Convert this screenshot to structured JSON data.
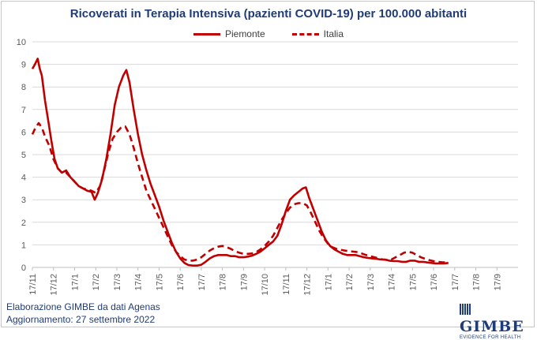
{
  "title": "Ricoverati in Terapia Intensiva (pazienti COVID-19) per 100.000 abitanti",
  "footer": {
    "line1": "Elaborazione GIMBE da dati Agenas",
    "line2": "Aggiornamento: 27 settembre 2022"
  },
  "logo": {
    "name": "GIMBE",
    "tagline": "EVIDENCE FOR HEALTH"
  },
  "colors": {
    "series": "#c00000",
    "grid": "#d9d9d9",
    "title": "#1f3c78"
  },
  "chart_data": {
    "type": "line",
    "title": "Ricoverati in Terapia Intensiva (pazienti COVID-19) per 100.000 abitanti",
    "xlabel": "",
    "ylabel": "",
    "ylim": [
      0,
      10
    ],
    "yticks": [
      0,
      1,
      2,
      3,
      4,
      5,
      6,
      7,
      8,
      9,
      10
    ],
    "grid": "horizontal",
    "legend_position": "top-center",
    "xticks": [
      "17/11",
      "17/12",
      "17/1",
      "17/2",
      "17/3",
      "17/4",
      "17/5",
      "17/6",
      "17/7",
      "17/8",
      "17/9",
      "17/10",
      "17/11",
      "17/12",
      "17/1",
      "17/2",
      "17/3",
      "17/4",
      "17/5",
      "17/6",
      "17/7",
      "17/8",
      "17/9"
    ],
    "series": [
      {
        "name": "Piemonte",
        "style": "solid",
        "points": [
          [
            0,
            8.8
          ],
          [
            0.12,
            9.0
          ],
          [
            0.25,
            9.25
          ],
          [
            0.35,
            8.8
          ],
          [
            0.45,
            8.5
          ],
          [
            0.6,
            7.4
          ],
          [
            0.75,
            6.5
          ],
          [
            0.9,
            5.6
          ],
          [
            1.05,
            4.8
          ],
          [
            1.2,
            4.4
          ],
          [
            1.4,
            4.2
          ],
          [
            1.6,
            4.3
          ],
          [
            1.8,
            4.0
          ],
          [
            2.0,
            3.8
          ],
          [
            2.2,
            3.6
          ],
          [
            2.4,
            3.5
          ],
          [
            2.6,
            3.4
          ],
          [
            2.8,
            3.35
          ],
          [
            2.95,
            3.0
          ],
          [
            3.1,
            3.3
          ],
          [
            3.3,
            3.9
          ],
          [
            3.5,
            4.8
          ],
          [
            3.7,
            5.9
          ],
          [
            3.9,
            7.2
          ],
          [
            4.1,
            8.0
          ],
          [
            4.3,
            8.5
          ],
          [
            4.45,
            8.75
          ],
          [
            4.6,
            8.2
          ],
          [
            4.8,
            7.0
          ],
          [
            5.0,
            5.9
          ],
          [
            5.2,
            5.0
          ],
          [
            5.4,
            4.3
          ],
          [
            5.6,
            3.7
          ],
          [
            5.8,
            3.2
          ],
          [
            6.0,
            2.7
          ],
          [
            6.2,
            2.1
          ],
          [
            6.4,
            1.6
          ],
          [
            6.6,
            1.1
          ],
          [
            6.8,
            0.7
          ],
          [
            7.0,
            0.4
          ],
          [
            7.2,
            0.2
          ],
          [
            7.4,
            0.1
          ],
          [
            7.6,
            0.08
          ],
          [
            7.8,
            0.08
          ],
          [
            8.0,
            0.12
          ],
          [
            8.2,
            0.25
          ],
          [
            8.4,
            0.4
          ],
          [
            8.6,
            0.5
          ],
          [
            8.8,
            0.55
          ],
          [
            9.0,
            0.55
          ],
          [
            9.2,
            0.55
          ],
          [
            9.4,
            0.5
          ],
          [
            9.6,
            0.5
          ],
          [
            9.8,
            0.45
          ],
          [
            10.0,
            0.45
          ],
          [
            10.2,
            0.48
          ],
          [
            10.4,
            0.52
          ],
          [
            10.6,
            0.6
          ],
          [
            10.8,
            0.7
          ],
          [
            11.0,
            0.85
          ],
          [
            11.2,
            1.0
          ],
          [
            11.4,
            1.15
          ],
          [
            11.6,
            1.4
          ],
          [
            11.8,
            1.9
          ],
          [
            12.0,
            2.5
          ],
          [
            12.2,
            3.0
          ],
          [
            12.4,
            3.2
          ],
          [
            12.6,
            3.35
          ],
          [
            12.8,
            3.5
          ],
          [
            12.95,
            3.55
          ],
          [
            13.1,
            3.1
          ],
          [
            13.3,
            2.6
          ],
          [
            13.5,
            2.1
          ],
          [
            13.7,
            1.6
          ],
          [
            13.9,
            1.2
          ],
          [
            14.1,
            0.95
          ],
          [
            14.3,
            0.8
          ],
          [
            14.5,
            0.7
          ],
          [
            14.7,
            0.6
          ],
          [
            14.9,
            0.55
          ],
          [
            15.1,
            0.55
          ],
          [
            15.3,
            0.55
          ],
          [
            15.5,
            0.5
          ],
          [
            15.7,
            0.45
          ],
          [
            15.9,
            0.42
          ],
          [
            16.1,
            0.4
          ],
          [
            16.3,
            0.38
          ],
          [
            16.5,
            0.35
          ],
          [
            16.7,
            0.35
          ],
          [
            16.9,
            0.3
          ],
          [
            17.1,
            0.28
          ],
          [
            17.3,
            0.28
          ],
          [
            17.5,
            0.25
          ],
          [
            17.7,
            0.25
          ],
          [
            17.9,
            0.3
          ],
          [
            18.1,
            0.3
          ],
          [
            18.3,
            0.25
          ],
          [
            18.5,
            0.25
          ],
          [
            18.7,
            0.22
          ],
          [
            18.9,
            0.2
          ],
          [
            19.1,
            0.18
          ],
          [
            19.3,
            0.18
          ],
          [
            19.5,
            0.18
          ],
          [
            19.7,
            0.2
          ]
        ]
      },
      {
        "name": "Italia",
        "style": "dashed",
        "points": [
          [
            0,
            5.9
          ],
          [
            0.15,
            6.2
          ],
          [
            0.3,
            6.4
          ],
          [
            0.45,
            6.2
          ],
          [
            0.6,
            5.8
          ],
          [
            0.8,
            5.4
          ],
          [
            1.0,
            4.8
          ],
          [
            1.2,
            4.4
          ],
          [
            1.4,
            4.2
          ],
          [
            1.6,
            4.2
          ],
          [
            1.8,
            4.0
          ],
          [
            2.0,
            3.8
          ],
          [
            2.2,
            3.6
          ],
          [
            2.4,
            3.5
          ],
          [
            2.6,
            3.45
          ],
          [
            2.8,
            3.4
          ],
          [
            3.0,
            3.3
          ],
          [
            3.2,
            3.6
          ],
          [
            3.4,
            4.3
          ],
          [
            3.6,
            5.1
          ],
          [
            3.8,
            5.7
          ],
          [
            4.0,
            6.0
          ],
          [
            4.2,
            6.2
          ],
          [
            4.4,
            6.25
          ],
          [
            4.6,
            5.9
          ],
          [
            4.8,
            5.3
          ],
          [
            5.0,
            4.6
          ],
          [
            5.2,
            4.0
          ],
          [
            5.4,
            3.4
          ],
          [
            5.6,
            3.0
          ],
          [
            5.8,
            2.6
          ],
          [
            6.0,
            2.2
          ],
          [
            6.2,
            1.8
          ],
          [
            6.4,
            1.4
          ],
          [
            6.6,
            1.0
          ],
          [
            6.8,
            0.7
          ],
          [
            7.0,
            0.5
          ],
          [
            7.2,
            0.35
          ],
          [
            7.4,
            0.3
          ],
          [
            7.6,
            0.3
          ],
          [
            7.8,
            0.35
          ],
          [
            8.0,
            0.45
          ],
          [
            8.2,
            0.6
          ],
          [
            8.4,
            0.75
          ],
          [
            8.6,
            0.85
          ],
          [
            8.8,
            0.92
          ],
          [
            9.0,
            0.95
          ],
          [
            9.2,
            0.9
          ],
          [
            9.4,
            0.82
          ],
          [
            9.6,
            0.72
          ],
          [
            9.8,
            0.65
          ],
          [
            10.0,
            0.6
          ],
          [
            10.2,
            0.6
          ],
          [
            10.4,
            0.62
          ],
          [
            10.6,
            0.68
          ],
          [
            10.8,
            0.8
          ],
          [
            11.0,
            0.95
          ],
          [
            11.2,
            1.15
          ],
          [
            11.4,
            1.4
          ],
          [
            11.6,
            1.75
          ],
          [
            11.8,
            2.1
          ],
          [
            12.0,
            2.4
          ],
          [
            12.2,
            2.65
          ],
          [
            12.4,
            2.8
          ],
          [
            12.6,
            2.85
          ],
          [
            12.8,
            2.85
          ],
          [
            13.0,
            2.75
          ],
          [
            13.2,
            2.4
          ],
          [
            13.4,
            2.0
          ],
          [
            13.6,
            1.6
          ],
          [
            13.8,
            1.3
          ],
          [
            14.0,
            1.05
          ],
          [
            14.2,
            0.9
          ],
          [
            14.4,
            0.82
          ],
          [
            14.6,
            0.78
          ],
          [
            14.8,
            0.75
          ],
          [
            15.0,
            0.72
          ],
          [
            15.2,
            0.7
          ],
          [
            15.4,
            0.68
          ],
          [
            15.6,
            0.62
          ],
          [
            15.8,
            0.55
          ],
          [
            16.0,
            0.5
          ],
          [
            16.2,
            0.45
          ],
          [
            16.4,
            0.4
          ],
          [
            16.6,
            0.35
          ],
          [
            16.8,
            0.33
          ],
          [
            17.0,
            0.35
          ],
          [
            17.2,
            0.45
          ],
          [
            17.4,
            0.55
          ],
          [
            17.6,
            0.65
          ],
          [
            17.8,
            0.7
          ],
          [
            18.0,
            0.65
          ],
          [
            18.2,
            0.55
          ],
          [
            18.4,
            0.45
          ],
          [
            18.6,
            0.38
          ],
          [
            18.8,
            0.32
          ],
          [
            19.0,
            0.28
          ],
          [
            19.2,
            0.25
          ],
          [
            19.4,
            0.23
          ],
          [
            19.6,
            0.22
          ],
          [
            19.7,
            0.22
          ]
        ]
      }
    ]
  }
}
